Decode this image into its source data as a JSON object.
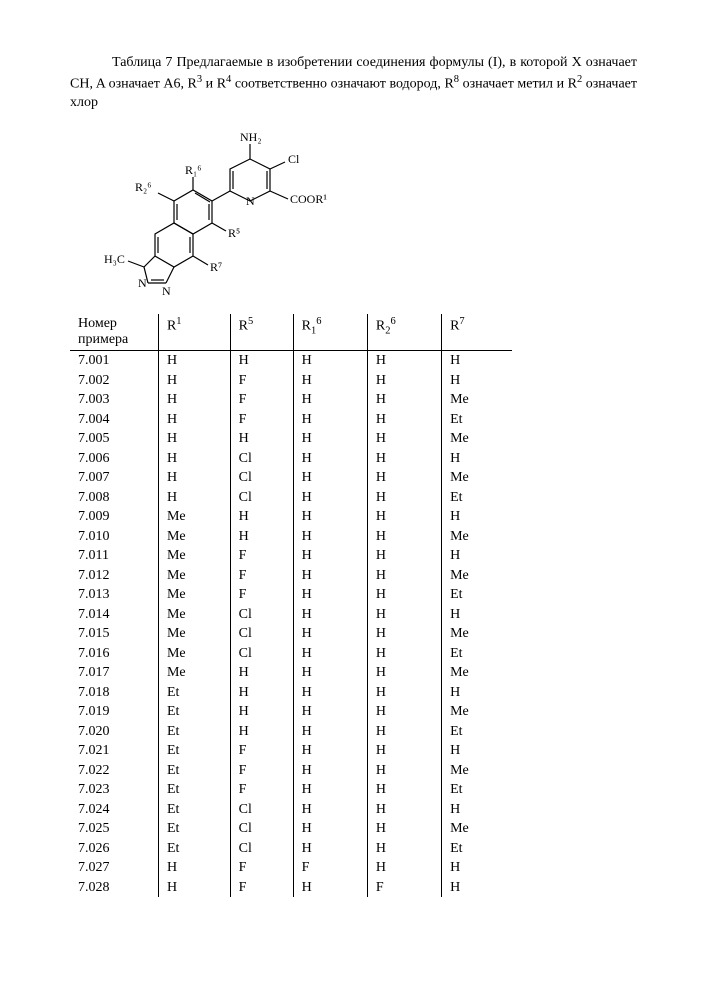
{
  "caption_html": "Таблица 7 Предлагаемые в изобретении соединения формулы (I), в которой X означает CH, A означает A6, R<sup>3</sup> и R<sup>4</sup> соответственно означают водород, R<sup>8</sup> означает метил и R<sup>2</sup> означает хлор",
  "structure": {
    "labels": {
      "nh2": "NH₂",
      "cl": "Cl",
      "n": "N",
      "coor1": "COOR¹",
      "r16": "R₁⁶",
      "r26": "R₂⁶",
      "r5": "R⁵",
      "r7": "R⁷",
      "h3c": "H₃C"
    },
    "colors": {
      "stroke": "#000000",
      "background": "#ffffff"
    }
  },
  "table": {
    "headers": [
      "Номер примера",
      "R¹",
      "R⁵",
      "R₁⁶",
      "R₂⁶",
      "R⁷"
    ],
    "rows": [
      [
        "7.001",
        "H",
        "H",
        "H",
        "H",
        "H"
      ],
      [
        "7.002",
        "H",
        "F",
        "H",
        "H",
        "H"
      ],
      [
        "7.003",
        "H",
        "F",
        "H",
        "H",
        "Me"
      ],
      [
        "7.004",
        "H",
        "F",
        "H",
        "H",
        "Et"
      ],
      [
        "7.005",
        "H",
        "H",
        "H",
        "H",
        "Me"
      ],
      [
        "7.006",
        "H",
        "Cl",
        "H",
        "H",
        "H"
      ],
      [
        "7.007",
        "H",
        "Cl",
        "H",
        "H",
        "Me"
      ],
      [
        "7.008",
        "H",
        "Cl",
        "H",
        "H",
        "Et"
      ],
      [
        "7.009",
        "Me",
        "H",
        "H",
        "H",
        "H"
      ],
      [
        "7.010",
        "Me",
        "H",
        "H",
        "H",
        "Me"
      ],
      [
        "7.011",
        "Me",
        "F",
        "H",
        "H",
        "H"
      ],
      [
        "7.012",
        "Me",
        "F",
        "H",
        "H",
        "Me"
      ],
      [
        "7.013",
        "Me",
        "F",
        "H",
        "H",
        "Et"
      ],
      [
        "7.014",
        "Me",
        "Cl",
        "H",
        "H",
        "H"
      ],
      [
        "7.015",
        "Me",
        "Cl",
        "H",
        "H",
        "Me"
      ],
      [
        "7.016",
        "Me",
        "Cl",
        "H",
        "H",
        "Et"
      ],
      [
        "7.017",
        "Me",
        "H",
        "H",
        "H",
        "Me"
      ],
      [
        "7.018",
        "Et",
        "H",
        "H",
        "H",
        "H"
      ],
      [
        "7.019",
        "Et",
        "H",
        "H",
        "H",
        "Me"
      ],
      [
        "7.020",
        "Et",
        "H",
        "H",
        "H",
        "Et"
      ],
      [
        "7.021",
        "Et",
        "F",
        "H",
        "H",
        "H"
      ],
      [
        "7.022",
        "Et",
        "F",
        "H",
        "H",
        "Me"
      ],
      [
        "7.023",
        "Et",
        "F",
        "H",
        "H",
        "Et"
      ],
      [
        "7.024",
        "Et",
        "Cl",
        "H",
        "H",
        "H"
      ],
      [
        "7.025",
        "Et",
        "Cl",
        "H",
        "H",
        "Me"
      ],
      [
        "7.026",
        "Et",
        "Cl",
        "H",
        "H",
        "Et"
      ],
      [
        "7.027",
        "H",
        "F",
        "F",
        "H",
        "H"
      ],
      [
        "7.028",
        "H",
        "F",
        "H",
        "F",
        "H"
      ]
    ]
  }
}
